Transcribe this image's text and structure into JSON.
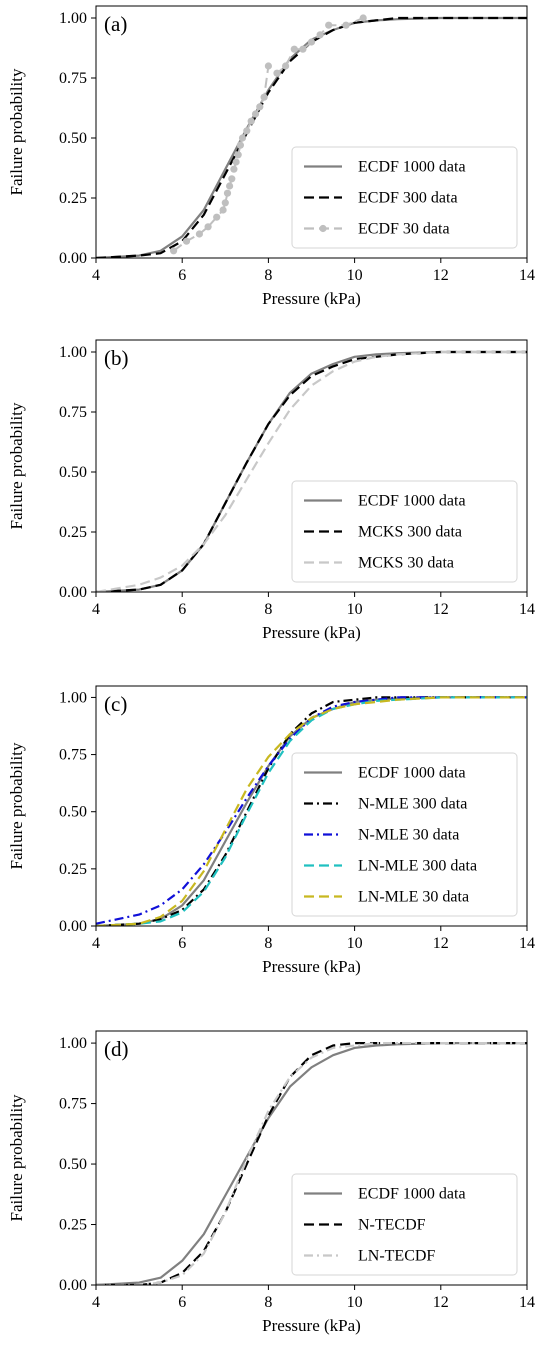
{
  "chart_data": [
    {
      "type": "line",
      "panel_label": "(a)",
      "xlabel": "Pressure (kPa)",
      "ylabel": "Failure probability",
      "xlim": [
        4,
        14
      ],
      "ylim": [
        0,
        1.05
      ],
      "xticks": [
        "4",
        "6",
        "8",
        "10",
        "12",
        "14"
      ],
      "yticks": [
        "0.00",
        "0.25",
        "0.50",
        "0.75",
        "1.00"
      ],
      "grid": false,
      "legend_position": "lower-right",
      "series": [
        {
          "name": "ECDF 1000 data",
          "color": "#808080",
          "dash": "solid",
          "marker": "none",
          "x": [
            4.0,
            5.0,
            5.5,
            6.0,
            6.5,
            7.0,
            7.5,
            8.0,
            8.5,
            9.0,
            9.5,
            10.0,
            10.5,
            11.0,
            12.0,
            13.0,
            14.0
          ],
          "y": [
            0.0,
            0.01,
            0.03,
            0.09,
            0.2,
            0.37,
            0.54,
            0.7,
            0.83,
            0.91,
            0.95,
            0.98,
            0.99,
            0.995,
            1.0,
            1.0,
            1.0
          ]
        },
        {
          "name": "ECDF 300 data",
          "color": "#000000",
          "dash": "long",
          "marker": "none",
          "x": [
            4.0,
            5.0,
            5.5,
            6.0,
            6.5,
            7.0,
            7.5,
            8.0,
            8.5,
            9.0,
            9.5,
            10.0,
            10.5,
            11.0,
            12.0,
            13.0,
            14.0
          ],
          "y": [
            0.0,
            0.01,
            0.02,
            0.07,
            0.18,
            0.35,
            0.52,
            0.69,
            0.82,
            0.9,
            0.95,
            0.98,
            0.99,
            1.0,
            1.0,
            1.0,
            1.0
          ]
        },
        {
          "name": "ECDF 30 data",
          "color": "#bfbfbf",
          "dash": "long",
          "marker": "circle",
          "x": [
            5.8,
            6.1,
            6.4,
            6.6,
            6.8,
            6.95,
            7.0,
            7.05,
            7.1,
            7.15,
            7.2,
            7.25,
            7.3,
            7.35,
            7.4,
            7.5,
            7.6,
            7.7,
            7.8,
            7.9,
            8.0,
            8.2,
            8.4,
            8.6,
            8.8,
            9.0,
            9.2,
            9.4,
            9.8,
            10.2
          ],
          "y": [
            0.03,
            0.07,
            0.1,
            0.13,
            0.17,
            0.2,
            0.23,
            0.27,
            0.3,
            0.33,
            0.37,
            0.4,
            0.43,
            0.47,
            0.5,
            0.53,
            0.57,
            0.6,
            0.63,
            0.67,
            0.8,
            0.77,
            0.8,
            0.87,
            0.87,
            0.9,
            0.93,
            0.97,
            0.97,
            1.0
          ]
        }
      ]
    },
    {
      "type": "line",
      "panel_label": "(b)",
      "xlabel": "Pressure (kPa)",
      "ylabel": "Failure probability",
      "xlim": [
        4,
        14
      ],
      "ylim": [
        0,
        1.05
      ],
      "xticks": [
        "4",
        "6",
        "8",
        "10",
        "12",
        "14"
      ],
      "yticks": [
        "0.00",
        "0.25",
        "0.50",
        "0.75",
        "1.00"
      ],
      "grid": false,
      "legend_position": "lower-right",
      "series": [
        {
          "name": "ECDF 1000 data",
          "color": "#808080",
          "dash": "solid",
          "marker": "none",
          "x": [
            4.0,
            5.0,
            5.5,
            6.0,
            6.5,
            7.0,
            7.5,
            8.0,
            8.5,
            9.0,
            9.5,
            10.0,
            10.5,
            11.0,
            12.0,
            13.0,
            14.0
          ],
          "y": [
            0.0,
            0.01,
            0.03,
            0.09,
            0.2,
            0.37,
            0.54,
            0.7,
            0.83,
            0.91,
            0.95,
            0.98,
            0.99,
            0.995,
            1.0,
            1.0,
            1.0
          ]
        },
        {
          "name": "MCKS 300 data",
          "color": "#000000",
          "dash": "long",
          "marker": "none",
          "x": [
            4.0,
            5.0,
            5.5,
            6.0,
            6.5,
            7.0,
            7.5,
            8.0,
            8.5,
            9.0,
            9.5,
            10.0,
            10.5,
            11.0,
            12.0,
            13.0,
            14.0
          ],
          "y": [
            0.0,
            0.01,
            0.03,
            0.09,
            0.2,
            0.37,
            0.54,
            0.7,
            0.82,
            0.9,
            0.94,
            0.97,
            0.98,
            0.99,
            1.0,
            1.0,
            1.0
          ]
        },
        {
          "name": "MCKS 30 data",
          "color": "#c8c8c8",
          "dash": "long",
          "marker": "none",
          "x": [
            4.0,
            5.0,
            5.5,
            6.0,
            6.5,
            7.0,
            7.5,
            8.0,
            8.5,
            9.0,
            9.5,
            10.0,
            10.5,
            11.0,
            12.0,
            13.0,
            14.0
          ],
          "y": [
            0.0,
            0.03,
            0.06,
            0.11,
            0.2,
            0.32,
            0.47,
            0.62,
            0.76,
            0.86,
            0.92,
            0.96,
            0.98,
            0.99,
            1.0,
            1.0,
            1.0
          ]
        }
      ]
    },
    {
      "type": "line",
      "panel_label": "(c)",
      "xlabel": "Pressure (kPa)",
      "ylabel": "Failure probability",
      "xlim": [
        4,
        14
      ],
      "ylim": [
        0,
        1.05
      ],
      "xticks": [
        "4",
        "6",
        "8",
        "10",
        "12",
        "14"
      ],
      "yticks": [
        "0.00",
        "0.25",
        "0.50",
        "0.75",
        "1.00"
      ],
      "grid": false,
      "legend_position": "lower-right",
      "series": [
        {
          "name": "ECDF 1000 data",
          "color": "#808080",
          "dash": "solid",
          "marker": "none",
          "x": [
            4.0,
            5.0,
            5.5,
            6.0,
            6.5,
            7.0,
            7.5,
            8.0,
            8.5,
            9.0,
            9.5,
            10.0,
            10.5,
            11.0,
            12.0,
            13.0,
            14.0
          ],
          "y": [
            0.0,
            0.01,
            0.03,
            0.09,
            0.2,
            0.37,
            0.54,
            0.7,
            0.83,
            0.91,
            0.95,
            0.98,
            0.99,
            0.995,
            1.0,
            1.0,
            1.0
          ]
        },
        {
          "name": "N-MLE 300 data",
          "color": "#000000",
          "dash": "dashdot",
          "marker": "none",
          "x": [
            4.0,
            5.0,
            5.5,
            6.0,
            6.5,
            7.0,
            7.5,
            8.0,
            8.5,
            9.0,
            9.5,
            10.0,
            10.5,
            11.0,
            12.0,
            13.0,
            14.0
          ],
          "y": [
            0.0,
            0.01,
            0.03,
            0.07,
            0.16,
            0.31,
            0.5,
            0.69,
            0.84,
            0.93,
            0.98,
            0.99,
            1.0,
            1.0,
            1.0,
            1.0,
            1.0
          ]
        },
        {
          "name": "N-MLE 30 data",
          "color": "#1010d8",
          "dash": "dashdot",
          "marker": "none",
          "x": [
            4.0,
            5.0,
            5.5,
            6.0,
            6.5,
            7.0,
            7.5,
            8.0,
            8.5,
            9.0,
            9.5,
            10.0,
            10.5,
            11.0,
            12.0,
            13.0,
            14.0
          ],
          "y": [
            0.01,
            0.05,
            0.09,
            0.16,
            0.27,
            0.41,
            0.56,
            0.7,
            0.82,
            0.91,
            0.96,
            0.98,
            0.99,
            1.0,
            1.0,
            1.0,
            1.0
          ]
        },
        {
          "name": "LN-MLE 300 data",
          "color": "#20c0c0",
          "dash": "long",
          "marker": "none",
          "x": [
            4.0,
            5.0,
            5.5,
            6.0,
            6.5,
            7.0,
            7.5,
            8.0,
            8.5,
            9.0,
            9.5,
            10.0,
            10.5,
            11.0,
            12.0,
            13.0,
            14.0
          ],
          "y": [
            0.0,
            0.01,
            0.02,
            0.06,
            0.15,
            0.3,
            0.49,
            0.67,
            0.81,
            0.9,
            0.95,
            0.97,
            0.985,
            0.99,
            1.0,
            1.0,
            1.0
          ]
        },
        {
          "name": "LN-MLE 30 data",
          "color": "#c8b820",
          "dash": "long",
          "marker": "none",
          "x": [
            4.0,
            5.0,
            5.5,
            6.0,
            6.5,
            7.0,
            7.5,
            8.0,
            8.5,
            9.0,
            9.5,
            10.0,
            10.5,
            11.0,
            12.0,
            13.0,
            14.0
          ],
          "y": [
            0.0,
            0.01,
            0.04,
            0.11,
            0.24,
            0.42,
            0.6,
            0.74,
            0.84,
            0.91,
            0.95,
            0.97,
            0.98,
            0.99,
            1.0,
            1.0,
            1.0
          ]
        }
      ]
    },
    {
      "type": "line",
      "panel_label": "(d)",
      "xlabel": "Pressure (kPa)",
      "ylabel": "Failure probability",
      "xlim": [
        4,
        14
      ],
      "ylim": [
        0,
        1.05
      ],
      "xticks": [
        "4",
        "6",
        "8",
        "10",
        "12",
        "14"
      ],
      "yticks": [
        "0.00",
        "0.25",
        "0.50",
        "0.75",
        "1.00"
      ],
      "grid": false,
      "legend_position": "lower-right",
      "series": [
        {
          "name": "ECDF 1000 data",
          "color": "#808080",
          "dash": "solid",
          "marker": "none",
          "x": [
            4.0,
            5.0,
            5.5,
            6.0,
            6.5,
            7.0,
            7.5,
            8.0,
            8.5,
            9.0,
            9.5,
            10.0,
            10.5,
            11.0,
            12.0,
            13.0,
            14.0
          ],
          "y": [
            0.0,
            0.01,
            0.03,
            0.1,
            0.21,
            0.37,
            0.53,
            0.69,
            0.82,
            0.9,
            0.95,
            0.98,
            0.99,
            0.995,
            1.0,
            1.0,
            1.0
          ]
        },
        {
          "name": "N-TECDF",
          "color": "#000000",
          "dash": "long",
          "marker": "none",
          "x": [
            4.0,
            5.0,
            5.5,
            6.0,
            6.5,
            7.0,
            7.5,
            8.0,
            8.5,
            9.0,
            9.5,
            10.0,
            10.5,
            11.0,
            12.0,
            13.0,
            14.0
          ],
          "y": [
            0.0,
            0.0,
            0.01,
            0.05,
            0.14,
            0.3,
            0.5,
            0.7,
            0.86,
            0.95,
            0.99,
            1.0,
            1.0,
            1.0,
            1.0,
            1.0,
            1.0
          ]
        },
        {
          "name": "LN-TECDF",
          "color": "#c8c8c8",
          "dash": "dashdot",
          "marker": "none",
          "x": [
            4.0,
            5.0,
            5.5,
            6.0,
            6.5,
            7.0,
            7.5,
            8.0,
            8.5,
            9.0,
            9.5,
            10.0,
            10.5,
            11.0,
            12.0,
            13.0,
            14.0
          ],
          "y": [
            0.0,
            0.0,
            0.01,
            0.04,
            0.13,
            0.3,
            0.52,
            0.72,
            0.86,
            0.94,
            0.98,
            0.99,
            1.0,
            1.0,
            1.0,
            1.0,
            1.0
          ]
        }
      ]
    }
  ]
}
